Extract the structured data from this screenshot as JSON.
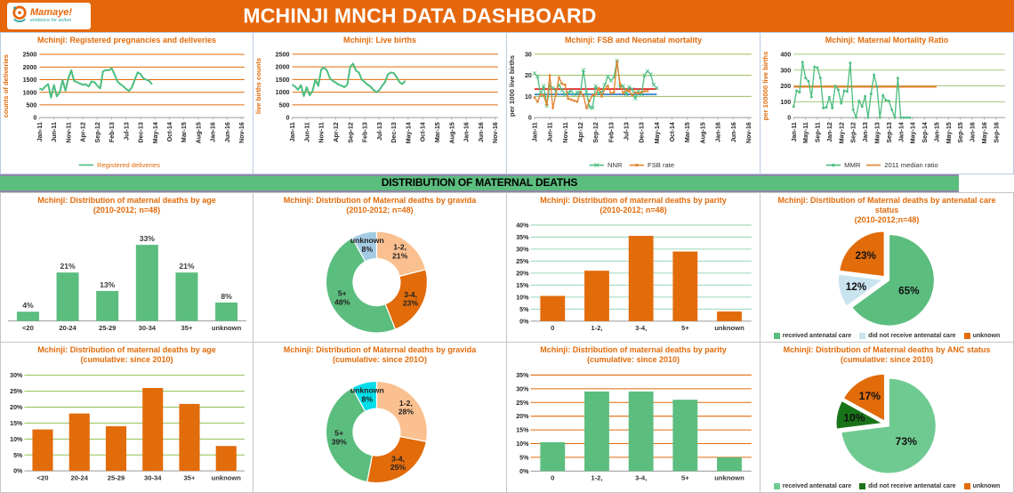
{
  "header": {
    "logo_name": "Mamaye!",
    "logo_tagline": "evidence for action",
    "title": "MCHINJI MNCH DATA DASHBOARD"
  },
  "banner": "DISTRIBUTION OF MATERNAL DEATHS",
  "colors": {
    "header_orange": "#e6670b",
    "accent_orange": "#e26b0a",
    "banner_green": "#5bbd7e",
    "series_green": "#4dbe80",
    "logo_teal": "#2aa5a0",
    "ref_red": "#e23333",
    "ref_blue": "#3f8ccc",
    "median_orange": "#e2832e"
  },
  "chart_data": [
    {
      "type": "line",
      "title": "Mchinji: Registered pregnancies and deliveries",
      "ylabel": "counts of deliveries",
      "ylabel_color": "#e26b0a",
      "ylim": [
        0,
        2500
      ],
      "yticks": [
        0,
        500,
        1000,
        1500,
        2000,
        2500
      ],
      "grid_color": "#e26b0a",
      "x_domain": [
        0,
        71
      ],
      "x_ticks": [
        "Jan-11",
        "Jun-11",
        "Nov-11",
        "Apr-12",
        "Sep-12",
        "Feb-13",
        "Jul-13",
        "Dec-13",
        "May-14",
        "Oct-14",
        "Mar-15",
        "Aug-15",
        "Jan-16",
        "Jun-16",
        "Nov-16"
      ],
      "x_tick_pos": [
        0,
        5,
        10,
        15,
        20,
        25,
        30,
        35,
        40,
        45,
        50,
        55,
        60,
        65,
        70
      ],
      "series": [
        {
          "name": "Registered deliveries",
          "color": "#4dbe80",
          "width": 2,
          "marker": "none",
          "values": [
            1150,
            1100,
            1230,
            1320,
            790,
            1290,
            840,
            1000,
            1480,
            1060,
            1550,
            1870,
            1450,
            1400,
            1350,
            1300,
            1320,
            1230,
            1430,
            1400,
            1270,
            1150,
            1830,
            1880,
            1870,
            1950,
            1700,
            1430,
            1320,
            1240,
            1130,
            1050,
            1200,
            1500,
            1790,
            1720,
            1550,
            1500,
            1450,
            1310
          ]
        }
      ],
      "ref_lines": [],
      "legend": [
        {
          "name": "Registered deliveries",
          "color": "#4dbe80",
          "marker": "none"
        }
      ],
      "legend_text_color": "#e26b0a"
    },
    {
      "type": "line",
      "title": "Mchinji: Live births",
      "ylabel": "live births counts",
      "ylabel_color": "#e26b0a",
      "ylim": [
        0,
        2500
      ],
      "yticks": [
        0,
        500,
        1000,
        1500,
        2000,
        2500
      ],
      "grid_color": "#e26b0a",
      "x_domain": [
        0,
        71
      ],
      "x_ticks": [
        "Jan-11",
        "Jun-11",
        "Nov-11",
        "Apr-12",
        "Sep-12",
        "Feb-13",
        "Jul-13",
        "Dec-13",
        "May-14",
        "Oct-14",
        "Mar-15",
        "Aug-15",
        "Jan-16",
        "Jun-16",
        "Nov-16"
      ],
      "x_tick_pos": [
        0,
        5,
        10,
        15,
        20,
        25,
        30,
        35,
        40,
        45,
        50,
        55,
        60,
        65,
        70
      ],
      "series": [
        {
          "name": "Live births",
          "color": "#4dbe80",
          "width": 2,
          "marker": "none",
          "values": [
            1300,
            1220,
            1100,
            1280,
            850,
            1200,
            880,
            1050,
            1500,
            1250,
            1900,
            1980,
            1850,
            1550,
            1450,
            1380,
            1300,
            1260,
            1200,
            1300,
            2000,
            2130,
            1850,
            1780,
            1500,
            1400,
            1300,
            1230,
            1100,
            1000,
            1080,
            1250,
            1400,
            1700,
            1780,
            1760,
            1600,
            1400,
            1320,
            1450
          ]
        }
      ],
      "ref_lines": [],
      "legend": [],
      "legend_text_color": "#333333"
    },
    {
      "type": "line",
      "title": "Mchinji: FSB and Neonatal mortality",
      "ylabel": "per 1000 live births",
      "ylabel_color": "#333333",
      "ylim": [
        0,
        30
      ],
      "yticks": [
        0,
        10,
        20,
        30
      ],
      "grid_color": "#9bbb59",
      "x_domain": [
        0,
        71
      ],
      "x_ticks": [
        "Jan-11",
        "Jun-11",
        "Nov-11",
        "Apr-12",
        "Sep-12",
        "Feb-13",
        "Jul-13",
        "Dec-13",
        "May-14",
        "Oct-14",
        "Mar-15",
        "Aug-15",
        "Jan-16",
        "Jun-16",
        "Nov-16"
      ],
      "x_tick_pos": [
        0,
        5,
        10,
        15,
        20,
        25,
        30,
        35,
        40,
        45,
        50,
        55,
        60,
        65,
        70
      ],
      "series": [
        {
          "name": "NNR",
          "color": "#4dbe80",
          "width": 1.3,
          "marker": "x",
          "values": [
            21,
            19.5,
            10.5,
            15,
            5.5,
            15.5,
            14,
            12.5,
            15.5,
            13,
            11,
            12,
            12.5,
            11,
            12,
            11.5,
            22.5,
            12,
            5,
            4.5,
            15,
            11.5,
            12,
            15.5,
            19.5,
            17.5,
            19,
            27,
            14.5,
            15,
            11,
            14.5,
            13.5,
            9,
            12.5,
            11,
            20,
            22,
            20.5,
            15.5,
            14
          ]
        },
        {
          "name": "FSB rate",
          "color": "#e2832e",
          "width": 1.3,
          "marker": "sq",
          "values": [
            9.5,
            7.5,
            11,
            10.5,
            6,
            20,
            4.5,
            11,
            19,
            16,
            15.5,
            9,
            8.5,
            8,
            7.5,
            12,
            10.5,
            4.5,
            8,
            10.5,
            11,
            14,
            10,
            13.5,
            15,
            11.5,
            12,
            26.5,
            16,
            11.5,
            13,
            12.5,
            10.5,
            12,
            11.5,
            12,
            12.5,
            12.5
          ]
        }
      ],
      "ref_lines": [
        {
          "y": 13.5,
          "x0": 0,
          "x1": 40,
          "color": "#e23333",
          "width": 1.8
        },
        {
          "y": 11,
          "x0": 0,
          "x1": 40,
          "color": "#3f8ccc",
          "width": 1.8
        }
      ],
      "legend": [
        {
          "name": "NNR",
          "color": "#4dbe80",
          "marker": "x"
        },
        {
          "name": "FSB rate",
          "color": "#e2832e",
          "marker": "sq"
        }
      ],
      "legend_text_color": "#333333"
    },
    {
      "type": "line",
      "title": "Mchinji: Maternal Mortality Ratio",
      "ylabel": "per 100000 live births",
      "ylabel_color": "#e26b0a",
      "ylim": [
        0,
        400
      ],
      "yticks": [
        0,
        100,
        200,
        300,
        400
      ],
      "grid_color": "#a5c87e",
      "x_domain": [
        0,
        71
      ],
      "x_ticks": [
        "Jan-11",
        "May-11",
        "Sep-11",
        "Jan-12",
        "May-12",
        "Sep-12",
        "Jan-13",
        "May-13",
        "Sep-13",
        "Jan-14",
        "May-14",
        "Sep-14",
        "Jan-15",
        "May-15",
        "Sep-15",
        "Jan-16",
        "May-16",
        "Sep-16"
      ],
      "x_tick_pos": [
        0,
        4,
        8,
        12,
        16,
        20,
        24,
        28,
        32,
        36,
        40,
        44,
        48,
        52,
        56,
        60,
        64,
        68
      ],
      "series": [
        {
          "name": "MMR",
          "color": "#4dbe80",
          "width": 1.3,
          "marker": "dot",
          "values": [
            70,
            170,
            160,
            350,
            250,
            230,
            130,
            320,
            315,
            250,
            60,
            65,
            130,
            60,
            200,
            175,
            90,
            170,
            165,
            345,
            50,
            0,
            105,
            70,
            135,
            0,
            150,
            270,
            195,
            0,
            140,
            110,
            105,
            50,
            0,
            250,
            0,
            0,
            0,
            0
          ]
        }
      ],
      "ref_lines": [
        {
          "y": 195,
          "x0": 0,
          "x1": 48,
          "color": "#e2832e",
          "width": 2.2
        }
      ],
      "legend": [
        {
          "name": "MMR",
          "color": "#4dbe80",
          "marker": "dot"
        },
        {
          "name": "2011 median ratio",
          "color": "#e2832e",
          "marker": "none"
        }
      ],
      "legend_text_color": "#333333"
    },
    {
      "type": "bar",
      "title": "Mchinji: Distribution of maternal deaths by age",
      "subtitle": "(2010-2012; n=48)",
      "categories": [
        "<20",
        "20-24",
        "25-29",
        "30-34",
        "35+",
        "unknown"
      ],
      "values": [
        4,
        21,
        13,
        33,
        21,
        8
      ],
      "data_labels": [
        "4%",
        "21%",
        "13%",
        "33%",
        "21%",
        "8%"
      ],
      "bar_color": "#5bbd7e",
      "grid_color": null,
      "ylim": [
        0,
        36
      ],
      "ytick_step": 5,
      "yticks_show": false
    },
    {
      "type": "donut",
      "title": "Mchinji: Distribution of Maternal deaths by gravida",
      "subtitle": "(2010-2012; n=48)",
      "slices": [
        {
          "name": "1-2",
          "line1": "1-2,",
          "line2": "21%",
          "value": 21,
          "color": "#fac090"
        },
        {
          "name": "3-4",
          "line1": "3-4,",
          "line2": "23%",
          "value": 23,
          "color": "#e26b0a"
        },
        {
          "name": "5+",
          "line1": "5+",
          "line2": "48%",
          "value": 48,
          "color": "#5bbd7e"
        },
        {
          "name": "unknown",
          "line1": "unknown",
          "line2": "8%",
          "value": 8,
          "color": "#a3cbe4"
        }
      ]
    },
    {
      "type": "bar",
      "title": "Mchinji: Distribution of maternal deaths by parity",
      "subtitle": "(2010-2012; n=48)",
      "categories": [
        "0",
        "1-2,",
        "3-4,",
        "5+",
        "unknown"
      ],
      "values": [
        10.5,
        21,
        35.5,
        29,
        4
      ],
      "data_labels": null,
      "bar_color": "#e26b0a",
      "grid_color": "#9ad8b5",
      "ylim": [
        0,
        40
      ],
      "ytick_step": 5,
      "yticks_show": true
    },
    {
      "type": "pie",
      "title": "Mchinji: Disrtibution of Maternal deaths by antenatal care status",
      "subtitle": "(2010-2012;n=48)",
      "slices": [
        {
          "name": "received antenatal care",
          "label": "65%",
          "value": 65,
          "color": "#5bbd7e"
        },
        {
          "name": "did not receive antenatal care",
          "label": "12%",
          "value": 12,
          "color": "#c9e3ef"
        },
        {
          "name": "unknown",
          "label": "23%",
          "value": 23,
          "color": "#e26b0a"
        }
      ]
    },
    {
      "type": "bar",
      "title": "Mchinji: Distribution of maternal deaths by age",
      "subtitle": "(cumulative: since 2010)",
      "categories": [
        "<20",
        "20-24",
        "25-29",
        "30-34",
        "35+",
        "unknown"
      ],
      "values": [
        13,
        18,
        14,
        26,
        21,
        7.8
      ],
      "data_labels": null,
      "bar_color": "#e26b0a",
      "grid_color": "#8fbf55",
      "ylim": [
        0,
        30
      ],
      "ytick_step": 5,
      "yticks_show": true
    },
    {
      "type": "donut",
      "title": "Mchinji: Distribution of Maternal deaths by gravida",
      "subtitle": "(cumulative: since 201O)",
      "slices": [
        {
          "name": "1-2",
          "line1": "1-2,",
          "line2": "28%",
          "value": 28,
          "color": "#fac090"
        },
        {
          "name": "3-4",
          "line1": "3-4,",
          "line2": "25%",
          "value": 25,
          "color": "#e26b0a"
        },
        {
          "name": "5+",
          "line1": "5+",
          "line2": "39%",
          "value": 39,
          "color": "#5bbd7e"
        },
        {
          "name": "unknown",
          "line1": "unknown",
          "line2": "8%",
          "value": 8,
          "color": "#00dce8"
        }
      ]
    },
    {
      "type": "bar",
      "title": "Mchinji: Distribution of maternal deaths by parity",
      "subtitle": "(cumulative: since 2010)",
      "categories": [
        "0",
        "1-2,",
        "3-4,",
        "5+",
        "unknown"
      ],
      "values": [
        10.5,
        29,
        29,
        26,
        5
      ],
      "data_labels": null,
      "bar_color": "#5bbd7e",
      "grid_color": "#e26b0a",
      "ylim": [
        0,
        35
      ],
      "ytick_step": 5,
      "yticks_show": true
    },
    {
      "type": "pie",
      "title": "Mchinji: Distribution of Maternal deaths by ANC status",
      "subtitle": "(cumulative: since 2010)",
      "slices": [
        {
          "name": "received antenatal care",
          "label": "73%",
          "value": 73,
          "color": "#6fca92"
        },
        {
          "name": "did not receive antenatal care",
          "label": "10%",
          "value": 10,
          "color": "#197419"
        },
        {
          "name": "unknown",
          "label": "17%",
          "value": 17,
          "color": "#e26b0a"
        }
      ]
    }
  ]
}
